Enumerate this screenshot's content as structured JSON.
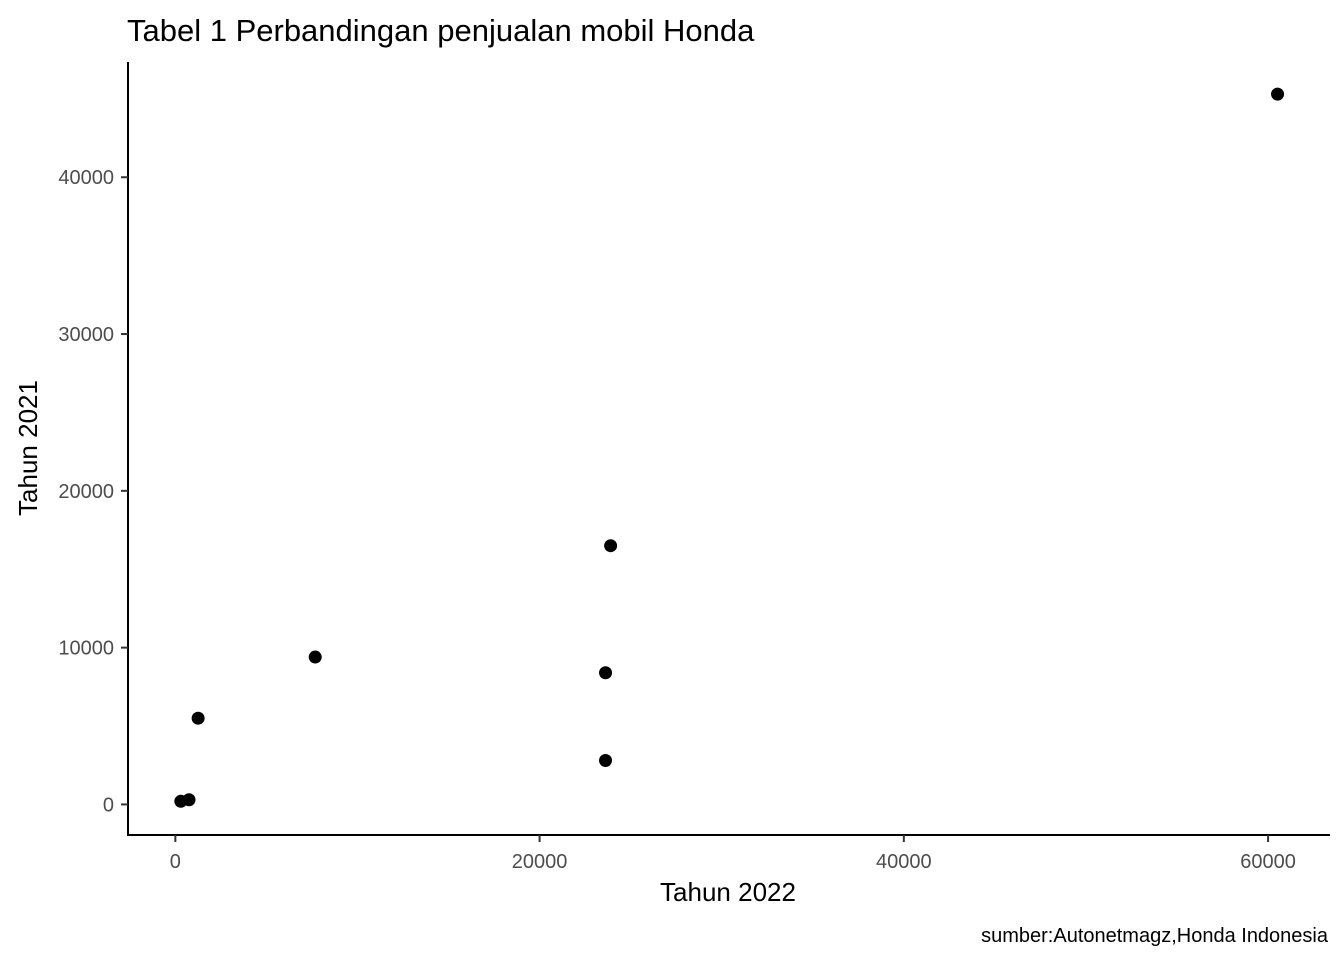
{
  "chart_data": {
    "type": "scatter",
    "title": "Tabel 1 Perbandingan penjualan mobil Honda",
    "xlabel": "Tahun 2022",
    "ylabel": "Tahun 2021",
    "caption": "sumber:Autonetmagz,Honda Indonesia",
    "xlim": [
      -2600,
      63400
    ],
    "ylim": [
      -1950,
      47350
    ],
    "x_ticks": [
      0,
      20000,
      40000,
      60000
    ],
    "x_tick_labels": [
      "0",
      "20000",
      "40000",
      "60000"
    ],
    "y_ticks": [
      0,
      10000,
      20000,
      30000,
      40000
    ],
    "y_tick_labels": [
      "0",
      "10000",
      "20000",
      "30000",
      "40000"
    ],
    "grid": false,
    "point_color": "#000000",
    "points": [
      {
        "x": 60520,
        "y": 45300
      },
      {
        "x": 23900,
        "y": 16500
      },
      {
        "x": 7680,
        "y": 9400
      },
      {
        "x": 23620,
        "y": 8400
      },
      {
        "x": 23620,
        "y": 2800
      },
      {
        "x": 1250,
        "y": 5500
      },
      {
        "x": 750,
        "y": 300
      },
      {
        "x": 300,
        "y": 200
      }
    ]
  }
}
